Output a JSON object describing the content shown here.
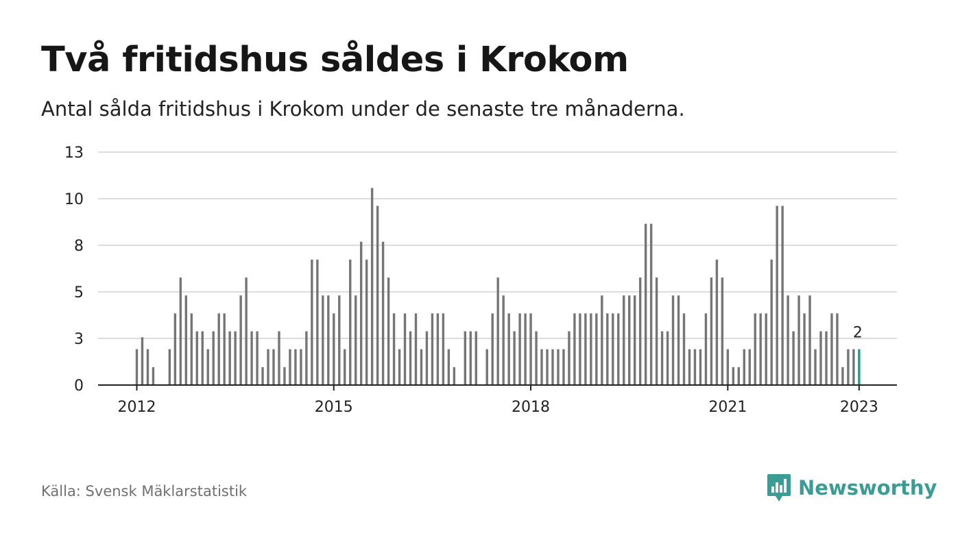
{
  "title": "Två fritidshus såldes i Krokom",
  "subtitle": "Antal sålda fritidshus i Krokom under de senaste tre månaderna.",
  "source": "Källa: Svensk Mäklarstatistik",
  "brand": "Newsworthy",
  "colors": {
    "bar": "#757575",
    "highlight": "#1a9e95",
    "grid": "#dddddd",
    "axis": "#222222",
    "brand": "#3a9c94"
  },
  "chart_data": {
    "type": "bar",
    "title": "Två fritidshus såldes i Krokom",
    "subtitle": "Antal sålda fritidshus i Krokom under de senaste tre månaderna.",
    "xlabel": "",
    "ylabel": "",
    "ylim": [
      0,
      13
    ],
    "y_ticks": [
      "0",
      "3",
      "5",
      "8",
      "10",
      "13"
    ],
    "x_ticks": [
      "2012",
      "2015",
      "2018",
      "2021",
      "2023"
    ],
    "x_tick_months": [
      0,
      36,
      72,
      108,
      132
    ],
    "start": "2012-01",
    "highlight_label": "2",
    "grid": true,
    "values": [
      2,
      2.67,
      2,
      1,
      0,
      0,
      2,
      4,
      6,
      5,
      4,
      3,
      3,
      2,
      3,
      4,
      4,
      3,
      3,
      5,
      6,
      3,
      3,
      1,
      2,
      2,
      3,
      1,
      2,
      2,
      2,
      3,
      7,
      7,
      5,
      5,
      4,
      5,
      2,
      7,
      5,
      8,
      7,
      11,
      10,
      8,
      6,
      4,
      2,
      4,
      3,
      4,
      2,
      3,
      4,
      4,
      4,
      2,
      1,
      0,
      3,
      3,
      3,
      0,
      2,
      4,
      6,
      5,
      4,
      3,
      4,
      4,
      4,
      3,
      2,
      2,
      2,
      2,
      2,
      3,
      4,
      4,
      4,
      4,
      4,
      5,
      4,
      4,
      4,
      5,
      5,
      5,
      6,
      9,
      9,
      6,
      3,
      3,
      5,
      5,
      4,
      2,
      2,
      2,
      4,
      6,
      7,
      6,
      2,
      1,
      1,
      2,
      2,
      4,
      4,
      4,
      7,
      10,
      10,
      5,
      3,
      5,
      4,
      5,
      2,
      3,
      3,
      4,
      4,
      1,
      2,
      2,
      2
    ]
  }
}
